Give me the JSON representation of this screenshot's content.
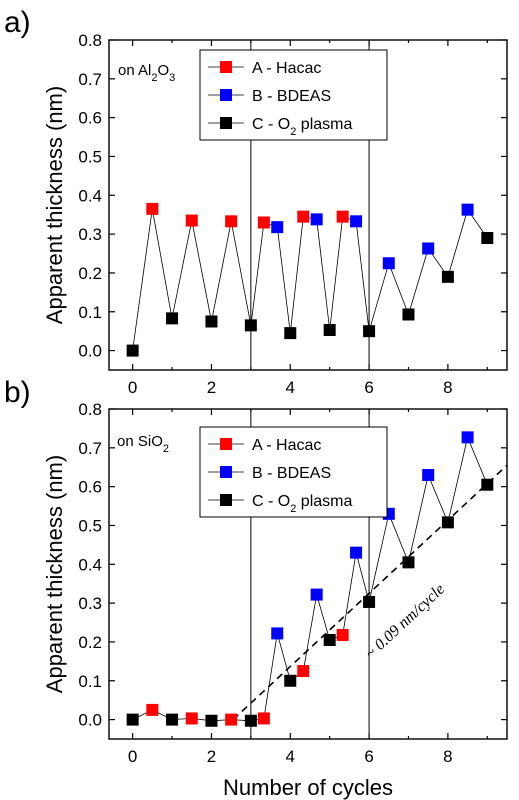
{
  "chart_data": [
    {
      "type": "scatter",
      "panel_label": "a)",
      "ylabel": "Apparent thickness (nm)",
      "xlabel": "",
      "substrate_prefix": "on Al",
      "substrate_sub1": "2",
      "substrate_mid": "O",
      "substrate_sub2": "3",
      "xlim": [
        -0.6,
        9.5
      ],
      "ylim": [
        -0.05,
        0.8
      ],
      "xticks": [
        0,
        2,
        4,
        6,
        8
      ],
      "yticks": [
        0.0,
        0.1,
        0.2,
        0.3,
        0.4,
        0.5,
        0.6,
        0.7,
        0.8
      ],
      "ytick_labels": [
        "0.0",
        "0.1",
        "0.2",
        "0.3",
        "0.4",
        "0.5",
        "0.6",
        "0.7",
        "0.8"
      ],
      "xtick_labels": [
        "0",
        "2",
        "4",
        "6",
        "8"
      ],
      "vlines": [
        3,
        6
      ],
      "grid": false,
      "legend_position": "top-center",
      "legend": [
        {
          "key": "A",
          "text": "A - Hacac",
          "color": "#ff0000"
        },
        {
          "key": "B",
          "text": "B - BDEAS",
          "color": "#0000ff"
        },
        {
          "key": "C",
          "text_prefix": "C - O",
          "text_sub": "2",
          "text_suffix": " plasma",
          "color": "#000000"
        }
      ],
      "points": [
        {
          "x": 0.0,
          "y": 0.0,
          "s": "C"
        },
        {
          "x": 0.5,
          "y": 0.365,
          "s": "A"
        },
        {
          "x": 1.0,
          "y": 0.083,
          "s": "C"
        },
        {
          "x": 1.5,
          "y": 0.335,
          "s": "A"
        },
        {
          "x": 2.0,
          "y": 0.075,
          "s": "C"
        },
        {
          "x": 2.5,
          "y": 0.333,
          "s": "A"
        },
        {
          "x": 3.0,
          "y": 0.065,
          "s": "C"
        },
        {
          "x": 3.33,
          "y": 0.33,
          "s": "A"
        },
        {
          "x": 3.67,
          "y": 0.318,
          "s": "B"
        },
        {
          "x": 4.0,
          "y": 0.045,
          "s": "C"
        },
        {
          "x": 4.33,
          "y": 0.345,
          "s": "A"
        },
        {
          "x": 4.67,
          "y": 0.338,
          "s": "B"
        },
        {
          "x": 5.0,
          "y": 0.053,
          "s": "C"
        },
        {
          "x": 5.33,
          "y": 0.345,
          "s": "A"
        },
        {
          "x": 5.67,
          "y": 0.333,
          "s": "B"
        },
        {
          "x": 6.0,
          "y": 0.05,
          "s": "C"
        },
        {
          "x": 6.5,
          "y": 0.225,
          "s": "B"
        },
        {
          "x": 7.0,
          "y": 0.093,
          "s": "C"
        },
        {
          "x": 7.5,
          "y": 0.263,
          "s": "B"
        },
        {
          "x": 8.0,
          "y": 0.19,
          "s": "C"
        },
        {
          "x": 8.5,
          "y": 0.363,
          "s": "B"
        },
        {
          "x": 9.0,
          "y": 0.29,
          "s": "C"
        }
      ]
    },
    {
      "type": "scatter",
      "panel_label": "b)",
      "ylabel": "Apparent thickness (nm)",
      "xlabel": "Number of cycles",
      "substrate_prefix": "on SiO",
      "substrate_sub1": "2",
      "substrate_mid": "",
      "substrate_sub2": "",
      "xlim": [
        -0.6,
        9.5
      ],
      "ylim": [
        -0.05,
        0.8
      ],
      "xticks": [
        0,
        2,
        4,
        6,
        8
      ],
      "yticks": [
        0.0,
        0.1,
        0.2,
        0.3,
        0.4,
        0.5,
        0.6,
        0.7,
        0.8
      ],
      "ytick_labels": [
        "0.0",
        "0.1",
        "0.2",
        "0.3",
        "0.4",
        "0.5",
        "0.6",
        "0.7",
        "0.8"
      ],
      "xtick_labels": [
        "0",
        "2",
        "4",
        "6",
        "8"
      ],
      "vlines": [
        3,
        6
      ],
      "grid": false,
      "legend_position": "top-center",
      "legend": [
        {
          "key": "A",
          "text": "A - Hacac",
          "color": "#ff0000"
        },
        {
          "key": "B",
          "text": "B - BDEAS",
          "color": "#0000ff"
        },
        {
          "key": "C",
          "text_prefix": "C - O",
          "text_sub": "2",
          "text_suffix": " plasma",
          "color": "#000000"
        }
      ],
      "fit_line": {
        "x1": 2.55,
        "y1": 0.0,
        "x2": 9.5,
        "y2": 0.655,
        "annotation": "~ 0.09 nm/cycle"
      },
      "points": [
        {
          "x": 0.0,
          "y": 0.0,
          "s": "C"
        },
        {
          "x": 0.5,
          "y": 0.025,
          "s": "A"
        },
        {
          "x": 1.0,
          "y": 0.0,
          "s": "C"
        },
        {
          "x": 1.5,
          "y": 0.003,
          "s": "A"
        },
        {
          "x": 2.0,
          "y": -0.003,
          "s": "C"
        },
        {
          "x": 2.5,
          "y": 0.0,
          "s": "A"
        },
        {
          "x": 3.0,
          "y": -0.003,
          "s": "C"
        },
        {
          "x": 3.33,
          "y": 0.003,
          "s": "A"
        },
        {
          "x": 3.67,
          "y": 0.222,
          "s": "B"
        },
        {
          "x": 4.0,
          "y": 0.1,
          "s": "C"
        },
        {
          "x": 4.33,
          "y": 0.125,
          "s": "A"
        },
        {
          "x": 4.67,
          "y": 0.322,
          "s": "B"
        },
        {
          "x": 5.0,
          "y": 0.205,
          "s": "C"
        },
        {
          "x": 5.33,
          "y": 0.218,
          "s": "A"
        },
        {
          "x": 5.67,
          "y": 0.43,
          "s": "B"
        },
        {
          "x": 6.0,
          "y": 0.303,
          "s": "C"
        },
        {
          "x": 6.5,
          "y": 0.53,
          "s": "B"
        },
        {
          "x": 7.0,
          "y": 0.405,
          "s": "C"
        },
        {
          "x": 7.5,
          "y": 0.63,
          "s": "B"
        },
        {
          "x": 8.0,
          "y": 0.508,
          "s": "C"
        },
        {
          "x": 8.5,
          "y": 0.727,
          "s": "B"
        },
        {
          "x": 9.0,
          "y": 0.605,
          "s": "C"
        }
      ]
    }
  ]
}
